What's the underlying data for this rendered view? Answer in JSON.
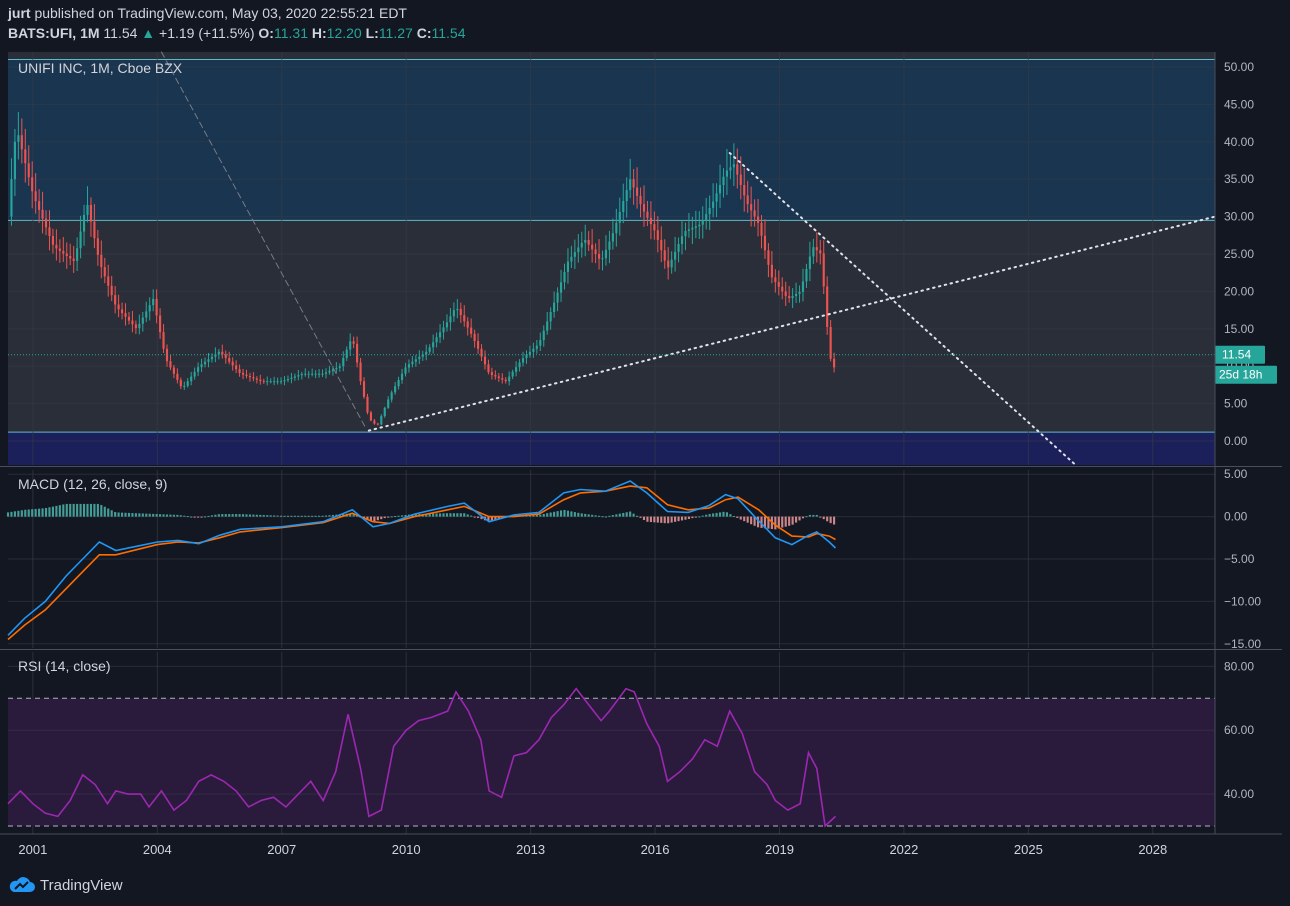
{
  "header": {
    "user": "jurt",
    "published_text": "published on TradingView.com, May 03, 2020 22:55:21 EDT",
    "symbol": "BATS:UFI, 1M",
    "last": "11.54",
    "change": "+1.19 (+11.5%)",
    "open_label": "O:",
    "open": "11.31",
    "high_label": "H:",
    "high": "12.20",
    "low_label": "L:",
    "low": "11.27",
    "close_label": "C:",
    "close": "11.54"
  },
  "footer": {
    "brand": "TradingView"
  },
  "colors": {
    "background": "#131722",
    "up": "#26a69a",
    "down": "#ef5350",
    "macd": "#2196f3",
    "signal": "#ff6d00",
    "rsi": "#9c27b0",
    "zone_top": "#1a3550",
    "zone_bottom": "#1b1f5a"
  },
  "chart_data": [
    {
      "type": "candlestick",
      "title": "UNIFI INC, 1M, Cboe BZX",
      "x_tick_labels": [
        "2001",
        "2004",
        "2007",
        "2010",
        "2013",
        "2016",
        "2019",
        "2022",
        "2025",
        "2028"
      ],
      "x_ticks": [
        2001,
        2004,
        2007,
        2010,
        2013,
        2016,
        2019,
        2022,
        2025,
        2028
      ],
      "xlim": [
        2000.4,
        2029.5
      ],
      "y_ticks": [
        0,
        5,
        10,
        15,
        20,
        25,
        30,
        35,
        40,
        45,
        50
      ],
      "y_tick_labels": [
        "0.00",
        "5.00",
        "10.00",
        "15.00",
        "20.00",
        "25.00",
        "30.00",
        "35.00",
        "40.00",
        "45.00",
        "50.00"
      ],
      "ylim": [
        -3.2,
        52
      ],
      "last_price_label": "11.54",
      "last_price": 11.54,
      "countdown_label": "25d 18h",
      "monthly_close_path": [
        [
          2000.4,
          30
        ],
        [
          2000.6,
          42
        ],
        [
          2001.0,
          33
        ],
        [
          2001.5,
          26
        ],
        [
          2002.0,
          24
        ],
        [
          2002.3,
          32
        ],
        [
          2002.6,
          24
        ],
        [
          2003.0,
          18
        ],
        [
          2003.5,
          15
        ],
        [
          2003.9,
          19
        ],
        [
          2004.2,
          11
        ],
        [
          2004.6,
          7
        ],
        [
          2005.0,
          10
        ],
        [
          2005.5,
          12
        ],
        [
          2006.0,
          9
        ],
        [
          2006.5,
          8
        ],
        [
          2007.0,
          8
        ],
        [
          2007.5,
          9
        ],
        [
          2008.0,
          9
        ],
        [
          2008.4,
          10
        ],
        [
          2008.7,
          14
        ],
        [
          2008.9,
          8
        ],
        [
          2009.1,
          3
        ],
        [
          2009.3,
          2
        ],
        [
          2009.6,
          6
        ],
        [
          2010.0,
          10
        ],
        [
          2010.5,
          12
        ],
        [
          2011.0,
          16
        ],
        [
          2011.2,
          18
        ],
        [
          2011.6,
          14
        ],
        [
          2012.0,
          9
        ],
        [
          2012.4,
          8
        ],
        [
          2012.8,
          11
        ],
        [
          2013.2,
          13
        ],
        [
          2013.6,
          19
        ],
        [
          2013.9,
          24
        ],
        [
          2014.3,
          27
        ],
        [
          2014.7,
          24
        ],
        [
          2015.0,
          28
        ],
        [
          2015.4,
          35
        ],
        [
          2015.7,
          31
        ],
        [
          2016.0,
          28
        ],
        [
          2016.3,
          23
        ],
        [
          2016.7,
          28
        ],
        [
          2017.1,
          29
        ],
        [
          2017.4,
          32
        ],
        [
          2017.7,
          36
        ],
        [
          2017.9,
          37
        ],
        [
          2018.2,
          32
        ],
        [
          2018.5,
          29
        ],
        [
          2018.8,
          22
        ],
        [
          2019.2,
          19
        ],
        [
          2019.5,
          20
        ],
        [
          2019.8,
          26
        ],
        [
          2020.0,
          25
        ],
        [
          2020.2,
          12
        ],
        [
          2020.3,
          9
        ],
        [
          2020.35,
          11.54
        ]
      ],
      "horizontal_levels": [
        {
          "value": 29.5
        },
        {
          "value": 1.2
        },
        {
          "value": 51
        }
      ],
      "trendlines": [
        {
          "style": "dashed",
          "from": [
            2004.1,
            52
          ],
          "to": [
            2009.0,
            2
          ]
        },
        {
          "style": "dotted",
          "from": [
            2009.1,
            1.4
          ],
          "to": [
            2029.5,
            30
          ]
        },
        {
          "style": "dotted",
          "from": [
            2017.8,
            38.5
          ],
          "to": [
            2026.1,
            -3
          ]
        }
      ]
    },
    {
      "type": "line",
      "title": "MACD (12, 26, close, 9)",
      "y_ticks": [
        5,
        0,
        -5,
        -10,
        -15
      ],
      "y_tick_labels": [
        "5.00",
        "0.00",
        "−5.00",
        "−10.00",
        "−15.00"
      ],
      "ylim": [
        -15.5,
        5.5
      ],
      "series": [
        {
          "name": "MACD",
          "points": [
            [
              2000.4,
              -14
            ],
            [
              2000.8,
              -12
            ],
            [
              2001.3,
              -10
            ],
            [
              2001.8,
              -7
            ],
            [
              2002.2,
              -5
            ],
            [
              2002.6,
              -3
            ],
            [
              2003.0,
              -4
            ],
            [
              2003.5,
              -3.5
            ],
            [
              2004.0,
              -3
            ],
            [
              2004.5,
              -2.8
            ],
            [
              2005.0,
              -3.2
            ],
            [
              2005.5,
              -2.2
            ],
            [
              2006.0,
              -1.5
            ],
            [
              2007.0,
              -1.2
            ],
            [
              2008.0,
              -0.6
            ],
            [
              2008.7,
              0.8
            ],
            [
              2009.2,
              -1.2
            ],
            [
              2009.6,
              -0.8
            ],
            [
              2010.2,
              0.3
            ],
            [
              2011.0,
              1.2
            ],
            [
              2011.4,
              1.6
            ],
            [
              2012.0,
              -0.6
            ],
            [
              2012.6,
              0.2
            ],
            [
              2013.2,
              0.5
            ],
            [
              2013.8,
              2.8
            ],
            [
              2014.2,
              3.2
            ],
            [
              2014.8,
              3.0
            ],
            [
              2015.4,
              4.2
            ],
            [
              2015.8,
              2.8
            ],
            [
              2016.3,
              0.6
            ],
            [
              2016.8,
              0.5
            ],
            [
              2017.3,
              1.3
            ],
            [
              2017.7,
              2.6
            ],
            [
              2018.0,
              2.1
            ],
            [
              2018.5,
              -0.5
            ],
            [
              2018.9,
              -2.5
            ],
            [
              2019.3,
              -3.3
            ],
            [
              2019.7,
              -2.2
            ],
            [
              2019.9,
              -1.8
            ],
            [
              2020.2,
              -3.0
            ],
            [
              2020.35,
              -3.7
            ]
          ]
        },
        {
          "name": "Signal",
          "points": [
            [
              2000.4,
              -14.5
            ],
            [
              2000.8,
              -12.8
            ],
            [
              2001.3,
              -11
            ],
            [
              2001.8,
              -8.5
            ],
            [
              2002.2,
              -6.5
            ],
            [
              2002.6,
              -4.5
            ],
            [
              2003.0,
              -4.5
            ],
            [
              2003.5,
              -3.9
            ],
            [
              2004.0,
              -3.3
            ],
            [
              2004.5,
              -3.0
            ],
            [
              2005.0,
              -3.1
            ],
            [
              2005.5,
              -2.5
            ],
            [
              2006.0,
              -1.8
            ],
            [
              2007.0,
              -1.3
            ],
            [
              2008.0,
              -0.7
            ],
            [
              2008.7,
              0.4
            ],
            [
              2009.2,
              -0.6
            ],
            [
              2009.6,
              -0.8
            ],
            [
              2010.2,
              0.0
            ],
            [
              2011.0,
              0.8
            ],
            [
              2011.4,
              1.2
            ],
            [
              2012.0,
              0.0
            ],
            [
              2012.6,
              0.0
            ],
            [
              2013.2,
              0.3
            ],
            [
              2013.8,
              2.0
            ],
            [
              2014.2,
              2.8
            ],
            [
              2014.8,
              3.0
            ],
            [
              2015.4,
              3.6
            ],
            [
              2015.8,
              3.4
            ],
            [
              2016.3,
              1.4
            ],
            [
              2016.8,
              0.8
            ],
            [
              2017.3,
              1.0
            ],
            [
              2017.7,
              2.0
            ],
            [
              2018.0,
              2.3
            ],
            [
              2018.5,
              0.8
            ],
            [
              2018.9,
              -1.0
            ],
            [
              2019.3,
              -2.3
            ],
            [
              2019.7,
              -2.4
            ],
            [
              2019.9,
              -2.0
            ],
            [
              2020.2,
              -2.3
            ],
            [
              2020.35,
              -2.7
            ]
          ]
        }
      ]
    },
    {
      "type": "line",
      "title": "RSI (14, close)",
      "y_ticks": [
        80,
        60,
        40
      ],
      "y_tick_labels": [
        "80.00",
        "60.00",
        "40.00"
      ],
      "ylim": [
        27.5,
        84.5
      ],
      "bands": [
        30,
        70
      ],
      "series": [
        {
          "name": "RSI",
          "points": [
            [
              2000.4,
              37
            ],
            [
              2000.7,
              41
            ],
            [
              2001.0,
              37
            ],
            [
              2001.3,
              34
            ],
            [
              2001.6,
              33
            ],
            [
              2001.9,
              38
            ],
            [
              2002.2,
              46
            ],
            [
              2002.5,
              43
            ],
            [
              2002.8,
              37
            ],
            [
              2003.0,
              41
            ],
            [
              2003.3,
              40
            ],
            [
              2003.6,
              40
            ],
            [
              2003.8,
              36
            ],
            [
              2004.1,
              41
            ],
            [
              2004.4,
              35
            ],
            [
              2004.7,
              38
            ],
            [
              2005.0,
              44
            ],
            [
              2005.3,
              46
            ],
            [
              2005.6,
              44
            ],
            [
              2005.9,
              41
            ],
            [
              2006.2,
              36
            ],
            [
              2006.5,
              38
            ],
            [
              2006.8,
              39
            ],
            [
              2007.1,
              36
            ],
            [
              2007.4,
              40
            ],
            [
              2007.7,
              44
            ],
            [
              2008.0,
              38
            ],
            [
              2008.3,
              47
            ],
            [
              2008.6,
              65
            ],
            [
              2008.9,
              48
            ],
            [
              2009.1,
              33
            ],
            [
              2009.4,
              35
            ],
            [
              2009.7,
              55
            ],
            [
              2010.0,
              60
            ],
            [
              2010.3,
              63
            ],
            [
              2010.6,
              64
            ],
            [
              2011.0,
              66
            ],
            [
              2011.2,
              72
            ],
            [
              2011.5,
              66
            ],
            [
              2011.8,
              57
            ],
            [
              2012.0,
              41
            ],
            [
              2012.3,
              39
            ],
            [
              2012.6,
              52
            ],
            [
              2012.9,
              53
            ],
            [
              2013.2,
              57
            ],
            [
              2013.5,
              64
            ],
            [
              2013.8,
              68
            ],
            [
              2014.1,
              73
            ],
            [
              2014.4,
              68
            ],
            [
              2014.7,
              63
            ],
            [
              2014.9,
              66
            ],
            [
              2015.3,
              73
            ],
            [
              2015.5,
              72
            ],
            [
              2015.8,
              62
            ],
            [
              2016.1,
              55
            ],
            [
              2016.3,
              44
            ],
            [
              2016.6,
              47
            ],
            [
              2016.9,
              51
            ],
            [
              2017.2,
              57
            ],
            [
              2017.5,
              55
            ],
            [
              2017.8,
              66
            ],
            [
              2018.1,
              59
            ],
            [
              2018.4,
              47
            ],
            [
              2018.7,
              43
            ],
            [
              2018.9,
              38
            ],
            [
              2019.2,
              35
            ],
            [
              2019.5,
              37
            ],
            [
              2019.7,
              53
            ],
            [
              2019.9,
              48
            ],
            [
              2020.1,
              30
            ],
            [
              2020.35,
              33
            ]
          ]
        }
      ]
    }
  ]
}
